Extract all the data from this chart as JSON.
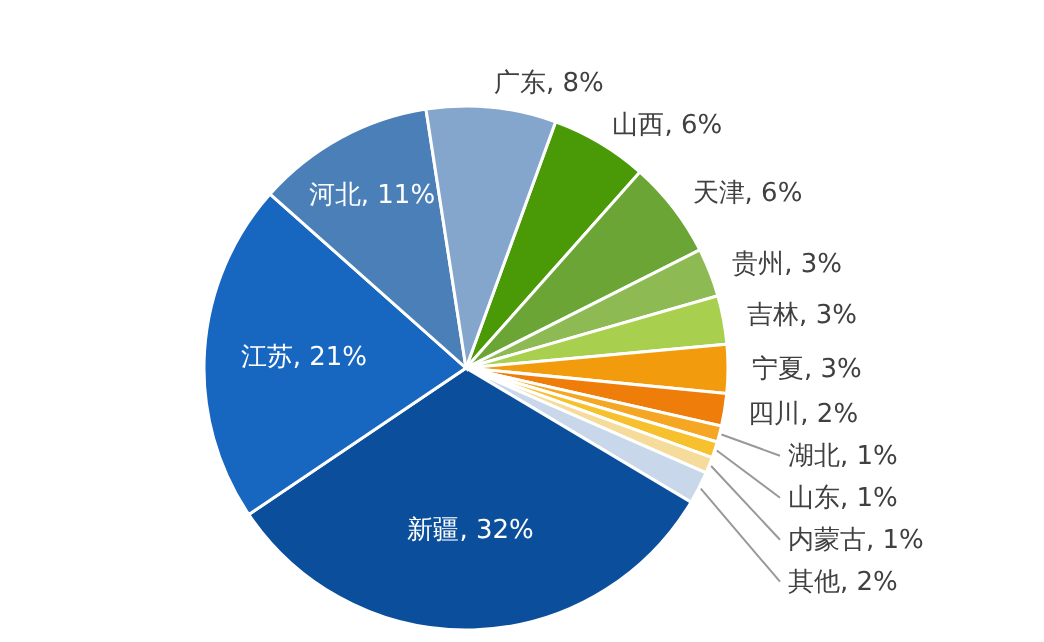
{
  "chart_data": {
    "type": "pie",
    "categories": [
      "山西",
      "天津",
      "贵州",
      "吉林",
      "宁夏",
      "四川",
      "湖北",
      "山东",
      "内蒙古",
      "其他",
      "新疆",
      "江苏",
      "河北",
      "广东"
    ],
    "values": [
      6,
      6,
      3,
      3,
      3,
      2,
      1,
      1,
      1,
      2,
      32,
      21,
      11,
      8
    ],
    "value_labels": [
      "6%",
      "6%",
      "3%",
      "3%",
      "3%",
      "2%",
      "1%",
      "1%",
      "1%",
      "2%",
      "32%",
      "21%",
      "11%",
      "8%"
    ],
    "colors": [
      "#4a9a08",
      "#6aa535",
      "#8dba52",
      "#a9cf4e",
      "#f29b0c",
      "#ee7d0a",
      "#f5a623",
      "#f6c12d",
      "#f5dc9a",
      "#c8d8ea",
      "#0b4f9c",
      "#1766c0",
      "#4b7fb8",
      "#85a6cc"
    ]
  }
}
